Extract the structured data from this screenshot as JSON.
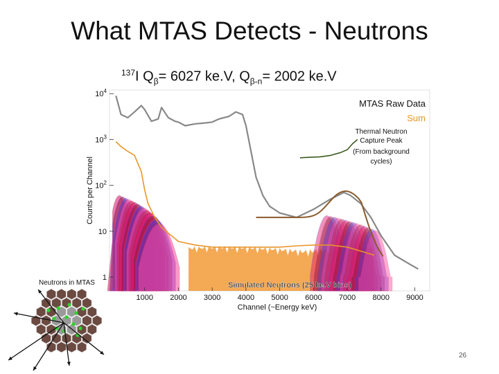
{
  "slide": {
    "title": "What MTAS Detects - Neutrons",
    "subtitle_iso": "137",
    "subtitle_main": "I Q",
    "subtitle_beta": "β",
    "subtitle_q": "= 6027 ke.V, Q",
    "subtitle_bn": "β-n",
    "subtitle_q2": "= 2002 ke.V",
    "inset_label": "Neutrons in MTAS",
    "page_number": "26"
  },
  "colors": {
    "raw_data": "#888888",
    "sum": "#e8952a",
    "capture": "#3d5a1e",
    "simulated": [
      "#e0106a",
      "#8b1a3a",
      "#5a3bd6",
      "#ff4aa0",
      "#c02050"
    ],
    "sim_fill": "#f08c1c",
    "fit": "#8b5a2b"
  },
  "chart_data": {
    "type": "line",
    "xlabel": "Channel (~Energy keV)",
    "ylabel": "Counts per Channel",
    "xlim": [
      0,
      9400
    ],
    "ylim": [
      0.5,
      12000
    ],
    "yscale": "log",
    "xticks": [
      "1000",
      "2000",
      "3000",
      "4000",
      "5000",
      "6000",
      "7000",
      "8000",
      "9000"
    ],
    "yticks": [
      {
        "base": "10",
        "exp": "4",
        "value": 10000
      },
      {
        "base": "10",
        "exp": "3",
        "value": 1000
      },
      {
        "base": "10",
        "exp": "2",
        "value": 100
      },
      {
        "base": "10",
        "exp": "",
        "value": 10
      },
      {
        "base": "1",
        "exp": "",
        "value": 1
      }
    ],
    "legend": {
      "raw": "MTAS Raw Data",
      "sum": "Sum"
    },
    "annotation_capture": [
      "Thermal Neutron",
      "Capture Peak",
      "(From background",
      "cycles)"
    ],
    "annotation_sim": "Simulated Neutrons (25 ke.V bins)",
    "series": [
      {
        "name": "MTAS Raw Data",
        "x": [
          150,
          300,
          500,
          700,
          900,
          1000,
          1200,
          1400,
          1500,
          1700,
          1900,
          2000,
          2200,
          2500,
          2800,
          3000,
          3200,
          3500,
          3700,
          3900,
          4000,
          4300,
          4500,
          4700,
          5000,
          5500,
          6000,
          6500,
          6900,
          7100,
          7400,
          7700,
          8000,
          8400,
          8800,
          9100
        ],
        "y": [
          9000,
          3500,
          3000,
          4000,
          5500,
          4500,
          2500,
          2800,
          5000,
          3000,
          2500,
          2400,
          2000,
          2200,
          2300,
          2400,
          2800,
          3200,
          4000,
          3500,
          2000,
          150,
          60,
          35,
          25,
          20,
          30,
          50,
          70,
          60,
          40,
          20,
          8,
          3,
          2,
          1.5
        ]
      },
      {
        "name": "Sum",
        "x": [
          150,
          300,
          500,
          700,
          900,
          1000,
          1100,
          1300,
          1500,
          2000,
          2500,
          3000,
          3500,
          4000,
          4500,
          5000,
          5500,
          6000,
          6500,
          7000,
          7500,
          7800
        ],
        "y": [
          900,
          700,
          550,
          450,
          200,
          80,
          40,
          20,
          12,
          6,
          5,
          4.5,
          4.5,
          4.5,
          4.5,
          4.5,
          4.8,
          5,
          5,
          4.5,
          3.5,
          3
        ]
      },
      {
        "name": "Thermal Neutron Capture Peak",
        "x": [
          5600,
          5900,
          6200,
          6500,
          6800,
          7000,
          7150,
          7300
        ],
        "y": [
          400,
          410,
          420,
          450,
          520,
          600,
          800,
          1000
        ]
      }
    ]
  }
}
